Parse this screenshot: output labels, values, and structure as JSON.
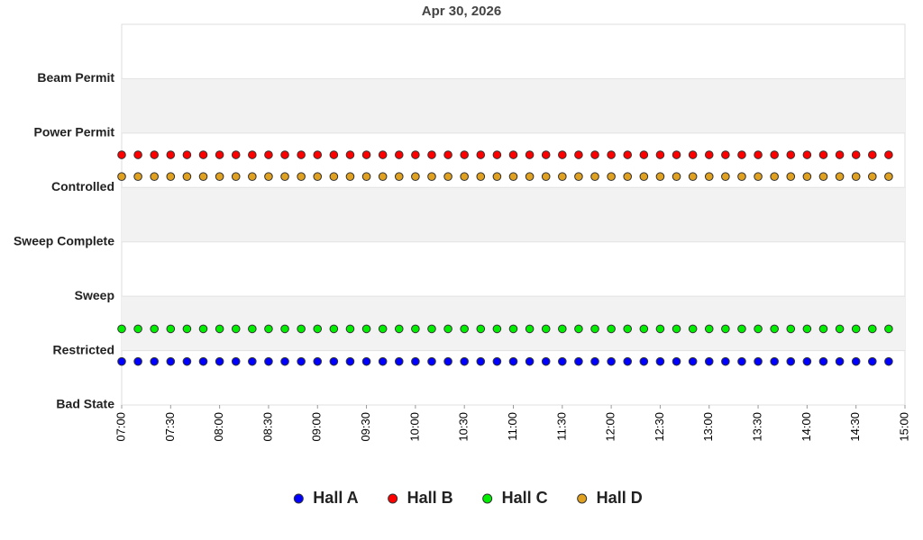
{
  "chart_data": {
    "type": "scatter",
    "title": "Apr 30, 2026",
    "x": [
      420,
      430,
      440,
      450,
      460,
      470,
      480,
      490,
      500,
      510,
      520,
      530,
      540,
      550,
      560,
      570,
      580,
      590,
      600,
      610,
      620,
      630,
      640,
      650,
      660,
      670,
      680,
      690,
      700,
      710,
      720,
      730,
      740,
      750,
      760,
      770,
      780,
      790,
      800,
      810,
      820,
      830,
      840,
      850,
      860,
      870,
      880,
      890
    ],
    "xlim": [
      420,
      900
    ],
    "xticks": [
      {
        "value": 420,
        "label": "07:00"
      },
      {
        "value": 450,
        "label": "07:30"
      },
      {
        "value": 480,
        "label": "08:00"
      },
      {
        "value": 510,
        "label": "08:30"
      },
      {
        "value": 540,
        "label": "09:00"
      },
      {
        "value": 570,
        "label": "09:30"
      },
      {
        "value": 600,
        "label": "10:00"
      },
      {
        "value": 630,
        "label": "10:30"
      },
      {
        "value": 660,
        "label": "11:00"
      },
      {
        "value": 690,
        "label": "11:30"
      },
      {
        "value": 720,
        "label": "12:00"
      },
      {
        "value": 750,
        "label": "12:30"
      },
      {
        "value": 780,
        "label": "13:00"
      },
      {
        "value": 810,
        "label": "13:30"
      },
      {
        "value": 840,
        "label": "14:00"
      },
      {
        "value": 870,
        "label": "14:30"
      },
      {
        "value": 900,
        "label": "15:00"
      }
    ],
    "ylim": [
      0,
      7
    ],
    "yticks": [
      {
        "value": 0,
        "label": "Bad State"
      },
      {
        "value": 1,
        "label": "Restricted"
      },
      {
        "value": 2,
        "label": "Sweep"
      },
      {
        "value": 3,
        "label": "Sweep Complete"
      },
      {
        "value": 4,
        "label": "Controlled"
      },
      {
        "value": 5,
        "label": "Power Permit"
      },
      {
        "value": 6,
        "label": "Beam Permit"
      }
    ],
    "series": [
      {
        "name": "Hall A",
        "color": "#0000ff",
        "values": [
          0.8,
          0.8,
          0.8,
          0.8,
          0.8,
          0.8,
          0.8,
          0.8,
          0.8,
          0.8,
          0.8,
          0.8,
          0.8,
          0.8,
          0.8,
          0.8,
          0.8,
          0.8,
          0.8,
          0.8,
          0.8,
          0.8,
          0.8,
          0.8,
          0.8,
          0.8,
          0.8,
          0.8,
          0.8,
          0.8,
          0.8,
          0.8,
          0.8,
          0.8,
          0.8,
          0.8,
          0.8,
          0.8,
          0.8,
          0.8,
          0.8,
          0.8,
          0.8,
          0.8,
          0.8,
          0.8,
          0.8,
          0.8
        ]
      },
      {
        "name": "Hall B",
        "color": "#ff0000",
        "values": [
          4.6,
          4.6,
          4.6,
          4.6,
          4.6,
          4.6,
          4.6,
          4.6,
          4.6,
          4.6,
          4.6,
          4.6,
          4.6,
          4.6,
          4.6,
          4.6,
          4.6,
          4.6,
          4.6,
          4.6,
          4.6,
          4.6,
          4.6,
          4.6,
          4.6,
          4.6,
          4.6,
          4.6,
          4.6,
          4.6,
          4.6,
          4.6,
          4.6,
          4.6,
          4.6,
          4.6,
          4.6,
          4.6,
          4.6,
          4.6,
          4.6,
          4.6,
          4.6,
          4.6,
          4.6,
          4.6,
          4.6,
          4.6
        ]
      },
      {
        "name": "Hall C",
        "color": "#00ee00",
        "values": [
          1.4,
          1.4,
          1.4,
          1.4,
          1.4,
          1.4,
          1.4,
          1.4,
          1.4,
          1.4,
          1.4,
          1.4,
          1.4,
          1.4,
          1.4,
          1.4,
          1.4,
          1.4,
          1.4,
          1.4,
          1.4,
          1.4,
          1.4,
          1.4,
          1.4,
          1.4,
          1.4,
          1.4,
          1.4,
          1.4,
          1.4,
          1.4,
          1.4,
          1.4,
          1.4,
          1.4,
          1.4,
          1.4,
          1.4,
          1.4,
          1.4,
          1.4,
          1.4,
          1.4,
          1.4,
          1.4,
          1.4,
          1.4
        ]
      },
      {
        "name": "Hall D",
        "color": "#e0a020",
        "values": [
          4.2,
          4.2,
          4.2,
          4.2,
          4.2,
          4.2,
          4.2,
          4.2,
          4.2,
          4.2,
          4.2,
          4.2,
          4.2,
          4.2,
          4.2,
          4.2,
          4.2,
          4.2,
          4.2,
          4.2,
          4.2,
          4.2,
          4.2,
          4.2,
          4.2,
          4.2,
          4.2,
          4.2,
          4.2,
          4.2,
          4.2,
          4.2,
          4.2,
          4.2,
          4.2,
          4.2,
          4.2,
          4.2,
          4.2,
          4.2,
          4.2,
          4.2,
          4.2,
          4.2,
          4.2,
          4.2,
          4.2,
          4.2
        ]
      }
    ]
  }
}
